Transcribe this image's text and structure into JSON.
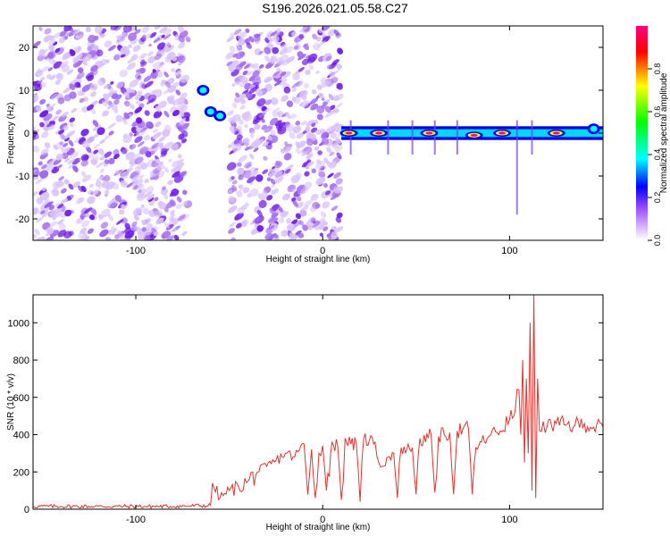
{
  "figure": {
    "title": "S196.2026.021.05.58.C27"
  },
  "chart_data": [
    {
      "type": "heatmap",
      "title": "",
      "xlabel": "Height of straight line (km)",
      "ylabel": "Frequency (Hz)",
      "xlim": [
        -155,
        150
      ],
      "ylim": [
        -25,
        25
      ],
      "x_ticks": [
        -100,
        0,
        100
      ],
      "x_tick_labels": [
        "-100",
        "0",
        "100"
      ],
      "y_ticks": [
        -20,
        -10,
        0,
        10,
        20
      ],
      "y_tick_labels": [
        "-20",
        "-10",
        "0",
        "10",
        "20"
      ],
      "regions": [
        {
          "x": [
            -155,
            -72
          ],
          "description": "scattered low-amplitude noise"
        },
        {
          "x": [
            -72,
            -50
          ],
          "description": "bright blobs near 5 to 12 Hz"
        },
        {
          "x": [
            -50,
            10
          ],
          "description": "scattered low-amplitude noise"
        },
        {
          "x": [
            10,
            150
          ],
          "description": "continuous high-amplitude band centered at 0 Hz"
        }
      ],
      "features": [
        {
          "x": -64,
          "y": 10,
          "amplitude": 0.3
        },
        {
          "x": -60,
          "y": 5,
          "amplitude": 0.25
        },
        {
          "x": -55,
          "y": 4,
          "amplitude": 0.25
        },
        {
          "x": 14,
          "y": 0,
          "amplitude": 0.9
        },
        {
          "x": 30,
          "y": 0,
          "amplitude": 0.9
        },
        {
          "x": 57,
          "y": 0,
          "amplitude": 0.9
        },
        {
          "x": 81,
          "y": -0.5,
          "amplitude": 0.9
        },
        {
          "x": 96,
          "y": 0,
          "amplitude": 0.9
        },
        {
          "x": 125,
          "y": 0,
          "amplitude": 0.95
        },
        {
          "x": 145,
          "y": 1,
          "amplitude": 0.5
        }
      ],
      "colorbar": {
        "label": "Normalized spectral amplitude",
        "range": [
          0,
          1
        ],
        "ticks": [
          0.0,
          0.2,
          0.4,
          0.6,
          0.8
        ],
        "tick_labels": [
          "0.0",
          "0.2",
          "0.4",
          "0.6",
          "0.8"
        ],
        "colors": [
          "#ffffff",
          "#9b4dff",
          "#0000ff",
          "#00ffff",
          "#00ff00",
          "#ffff00",
          "#ff0000",
          "#ff0080"
        ]
      }
    },
    {
      "type": "line",
      "title": "",
      "xlabel": "Height of straight line (km)",
      "ylabel": "SNR (10 * v/v)",
      "xlim": [
        -155,
        150
      ],
      "ylim": [
        0,
        1150
      ],
      "x_ticks": [
        -100,
        0,
        100
      ],
      "x_tick_labels": [
        "-100",
        "0",
        "100"
      ],
      "y_ticks": [
        0,
        200,
        400,
        600,
        800,
        1000
      ],
      "y_tick_labels": [
        "0",
        "200",
        "400",
        "600",
        "800",
        "1000"
      ],
      "color": "#e8302c",
      "series": [
        {
          "x": [
            -155,
            -140,
            -120,
            -100,
            -80,
            -60,
            -59,
            -55,
            -50,
            -45,
            -40,
            -35,
            -30,
            -25,
            -20,
            -15,
            -10,
            -8,
            -6,
            -4,
            -2,
            0,
            2,
            5,
            8,
            10,
            12,
            15,
            18,
            20,
            22,
            25,
            28,
            30,
            32,
            35,
            38,
            40,
            42,
            45,
            48,
            50,
            52,
            55,
            58,
            60,
            62,
            65,
            68,
            70,
            72,
            75,
            78,
            80,
            82,
            85,
            88,
            90,
            95,
            100,
            103,
            105,
            106,
            107,
            108,
            109,
            110,
            111,
            112,
            113,
            114,
            115,
            116,
            118,
            120,
            125,
            130,
            135,
            140,
            145,
            150
          ],
          "y": [
            15,
            15,
            15,
            15,
            15,
            20,
            140,
            60,
            100,
            120,
            150,
            200,
            230,
            260,
            300,
            280,
            350,
            80,
            320,
            60,
            300,
            340,
            100,
            360,
            340,
            50,
            380,
            350,
            350,
            40,
            380,
            370,
            360,
            250,
            230,
            280,
            300,
            60,
            330,
            320,
            330,
            80,
            380,
            360,
            400,
            90,
            390,
            400,
            410,
            80,
            420,
            430,
            430,
            80,
            330,
            360,
            380,
            400,
            420,
            480,
            530,
            640,
            400,
            800,
            250,
            700,
            300,
            1000,
            100,
            1150,
            60,
            700,
            420,
            470,
            440,
            460,
            450,
            450,
            460,
            440,
            440
          ]
        }
      ]
    }
  ]
}
